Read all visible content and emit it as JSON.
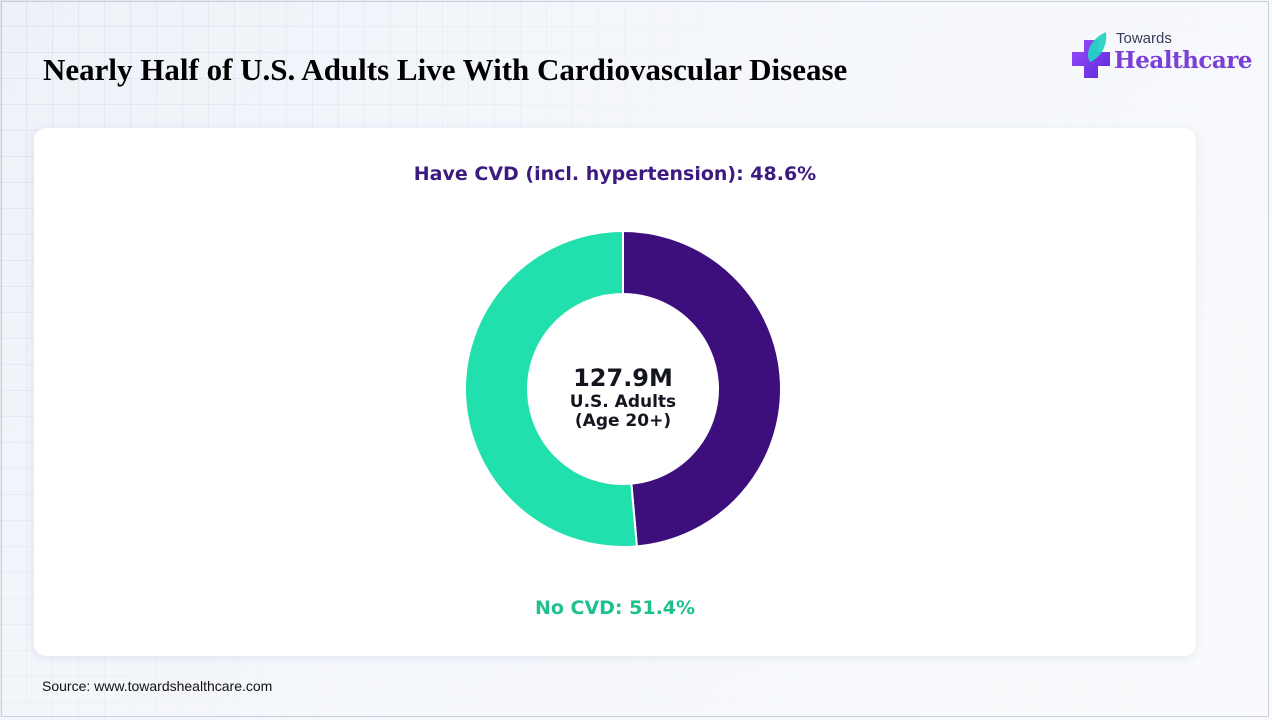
{
  "header": {
    "title": "Nearly Half of U.S. Adults Live With Cardiovascular Disease"
  },
  "logo": {
    "top_text": "Towards",
    "main_text": "Healthcare",
    "icon": "medical-cross-leaf-icon"
  },
  "chart_data": {
    "type": "pie",
    "donut": true,
    "slices": [
      {
        "label": "Have CVD (incl. hypertension): 48.6%",
        "name": "Have CVD (incl. hypertension)",
        "value": 48.6,
        "color": "#3d0f7d"
      },
      {
        "label": "No CVD: 51.4%",
        "name": "No CVD",
        "value": 51.4,
        "color": "#22e0ae"
      }
    ],
    "center_value": "127.9M",
    "center_line1": "U.S. Adults",
    "center_line2": "(Age 20+)"
  },
  "colors": {
    "cvd_label": "#3d1a80",
    "no_cvd_label": "#1fbf8f",
    "logo_accent": "#7a3fd6"
  },
  "footer": {
    "source": "Source: www.towardshealthcare.com"
  }
}
